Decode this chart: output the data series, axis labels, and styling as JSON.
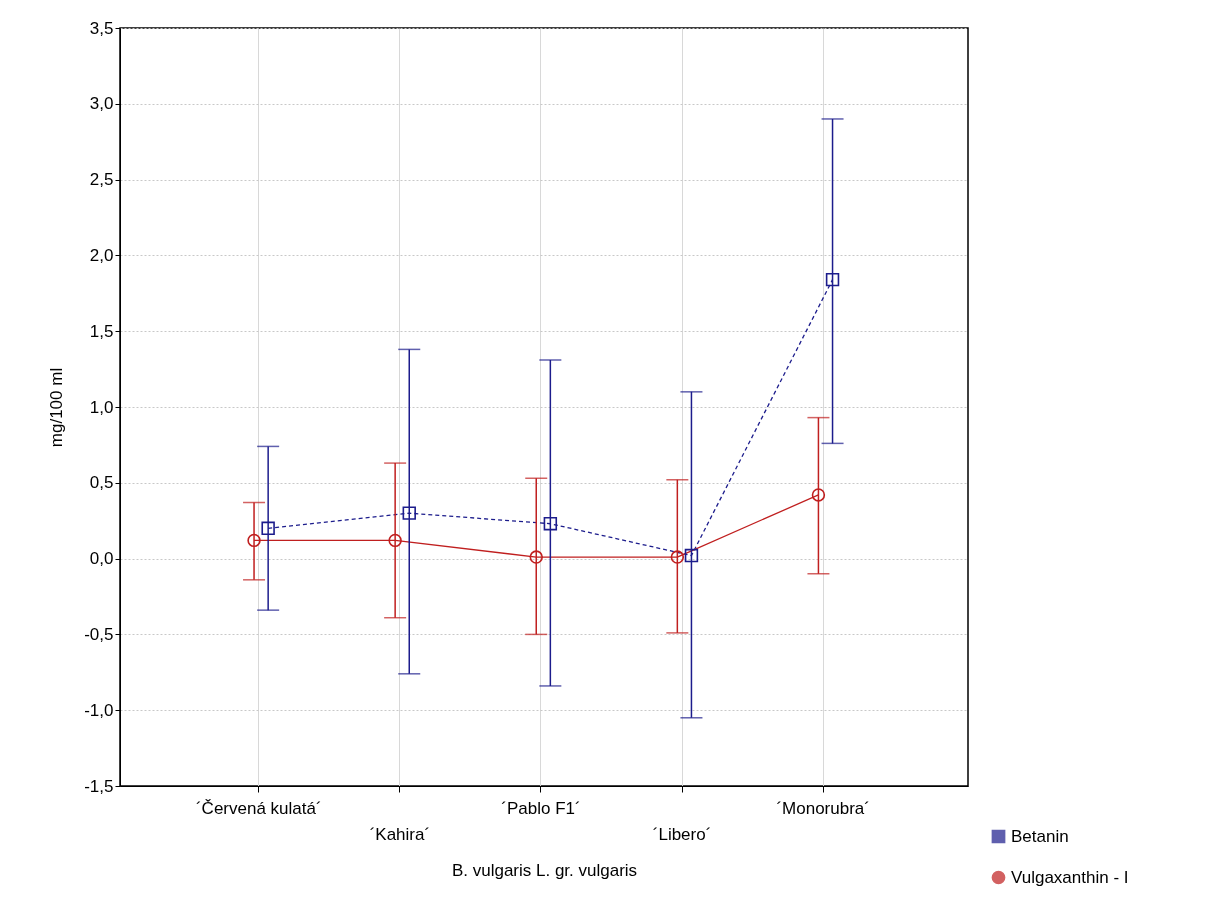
{
  "chart_data": {
    "type": "line",
    "xlabel": "B. vulgaris L. gr. vulgaris",
    "ylabel": "mg/100 ml",
    "categories": [
      "´Červená kulatá´",
      "´Kahira´",
      "´Pablo F1´",
      "´Libero´",
      "´Monorubra´"
    ],
    "series": [
      {
        "name": "Betanin",
        "color": "#1c1c8c",
        "marker": "square",
        "line_style": "dashed",
        "values": [
          0.2,
          0.3,
          0.23,
          0.02,
          1.84
        ],
        "errors": [
          [
            -0.34,
            0.74
          ],
          [
            -0.76,
            1.38
          ],
          [
            -0.84,
            1.31
          ],
          [
            -1.05,
            1.1
          ],
          [
            0.76,
            2.9
          ]
        ]
      },
      {
        "name": "Vulgaxanthin - I",
        "color": "#c01f1f",
        "marker": "circle",
        "line_style": "solid",
        "values": [
          0.12,
          0.12,
          0.01,
          0.01,
          0.42
        ],
        "errors": [
          [
            -0.14,
            0.37
          ],
          [
            -0.39,
            0.63
          ],
          [
            -0.5,
            0.53
          ],
          [
            -0.49,
            0.52
          ],
          [
            -0.1,
            0.93
          ]
        ]
      }
    ],
    "ylim": [
      -1.5,
      3.5
    ],
    "yticks": [
      {
        "value": -1.5,
        "label": "-1,5"
      },
      {
        "value": -1.0,
        "label": "-1,0"
      },
      {
        "value": -0.5,
        "label": "-0,5"
      },
      {
        "value": 0,
        "label": "0,0"
      },
      {
        "value": 0.5,
        "label": "0,5"
      },
      {
        "value": 1.0,
        "label": "1,0"
      },
      {
        "value": 1.5,
        "label": "1,5"
      },
      {
        "value": 2.0,
        "label": "2,0"
      },
      {
        "value": 2.5,
        "label": "2,5"
      },
      {
        "value": 3.0,
        "label": "3,0"
      },
      {
        "value": 3.5,
        "label": "3,5"
      }
    ],
    "grid": true,
    "legend": "bottom right"
  }
}
